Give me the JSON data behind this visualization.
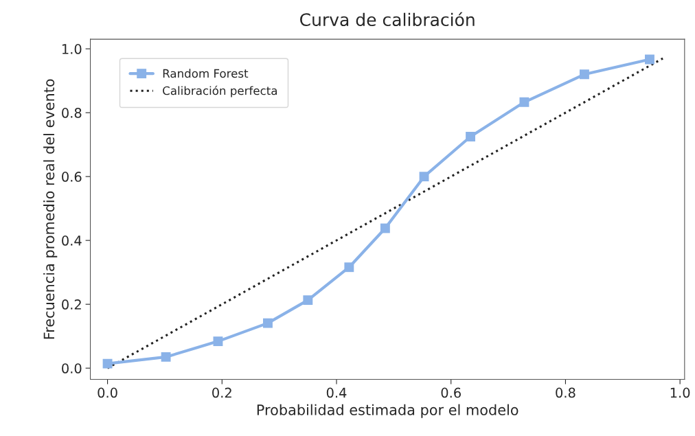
{
  "chart_data": {
    "type": "line",
    "title": "Curva de calibración",
    "xlabel": "Probabilidad estimada por el modelo",
    "ylabel": "Frecuencia promedio real del evento",
    "xlim": [
      -0.03,
      1.008
    ],
    "ylim": [
      -0.035,
      1.03
    ],
    "xticks": [
      {
        "value": 0,
        "label": "0.0"
      },
      0.2,
      0.4,
      0.6,
      0.8,
      {
        "value": 1,
        "label": "1.0"
      }
    ],
    "yticks": [
      {
        "value": 0,
        "label": "0.0"
      },
      0.2,
      0.4,
      0.6,
      0.8,
      {
        "value": 1,
        "label": "1.0"
      }
    ],
    "grid": false,
    "legend": "top left",
    "series": [
      {
        "name": "Random Forest",
        "color": "#8ab2e8",
        "marker": "square",
        "line_style": "solid",
        "x": [
          0.0,
          0.102,
          0.193,
          0.28,
          0.35,
          0.422,
          0.485,
          0.553,
          0.634,
          0.728,
          0.833,
          0.947
        ],
        "values": [
          0.014,
          0.035,
          0.084,
          0.141,
          0.213,
          0.316,
          0.438,
          0.6,
          0.725,
          0.833,
          0.92,
          0.967
        ]
      },
      {
        "name": "Calibración perfecta",
        "color": "#222222",
        "marker": "none",
        "line_style": "dotted",
        "x": [
          0.0,
          0.97
        ],
        "values": [
          0.0,
          0.97
        ]
      }
    ]
  }
}
